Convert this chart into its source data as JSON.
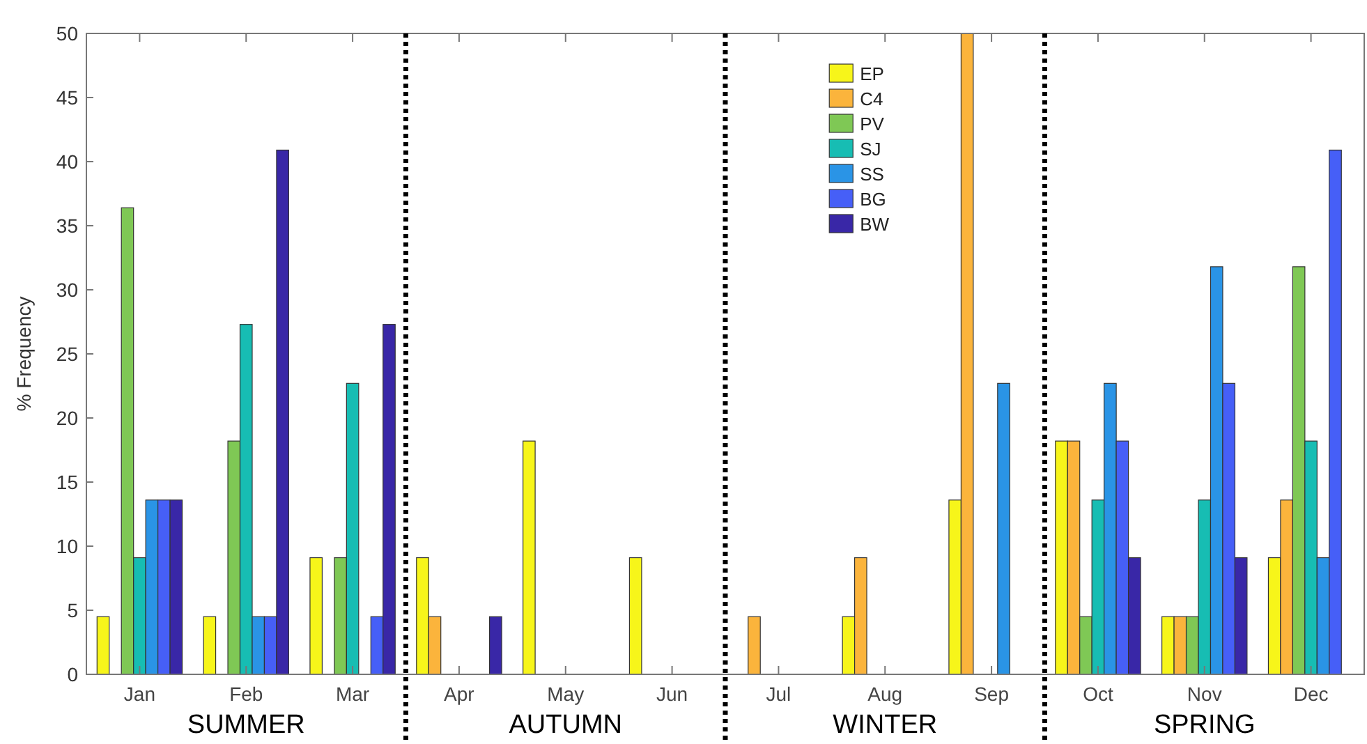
{
  "chart_data": {
    "type": "bar",
    "ylabel": "% Frequency",
    "categories": [
      "Jan",
      "Feb",
      "Mar",
      "Apr",
      "May",
      "Jun",
      "Jul",
      "Aug",
      "Sep",
      "Oct",
      "Nov",
      "Dec"
    ],
    "ylim": [
      0,
      50
    ],
    "yticks": [
      0,
      5,
      10,
      15,
      20,
      25,
      30,
      35,
      40,
      45,
      50
    ],
    "series": [
      {
        "name": "EP",
        "color": "#f7f51a",
        "values": [
          4.5,
          4.5,
          9.1,
          9.1,
          18.2,
          9.1,
          0,
          4.5,
          13.6,
          18.2,
          4.5,
          9.1
        ]
      },
      {
        "name": "C4",
        "color": "#fbb43c",
        "values": [
          0,
          0,
          0,
          4.5,
          0,
          0,
          4.5,
          9.1,
          50,
          18.2,
          4.5,
          13.6
        ]
      },
      {
        "name": "PV",
        "color": "#7fc855",
        "values": [
          36.4,
          18.2,
          9.1,
          0,
          0,
          0,
          0,
          0,
          0,
          4.5,
          4.5,
          31.8
        ]
      },
      {
        "name": "SJ",
        "color": "#17bdb3",
        "values": [
          9.1,
          27.3,
          22.7,
          0,
          0,
          0,
          0,
          0,
          0,
          13.6,
          13.6,
          18.2
        ]
      },
      {
        "name": "SS",
        "color": "#2a94e6",
        "values": [
          13.6,
          4.5,
          0,
          0,
          0,
          0,
          0,
          0,
          22.7,
          22.7,
          31.8,
          9.1
        ]
      },
      {
        "name": "BG",
        "color": "#465ff7",
        "values": [
          13.6,
          4.5,
          4.5,
          0,
          0,
          0,
          0,
          0,
          0,
          18.2,
          22.7,
          40.9
        ]
      },
      {
        "name": "BW",
        "color": "#3927a7",
        "values": [
          13.6,
          40.9,
          27.3,
          4.5,
          0,
          0,
          0,
          0,
          0,
          9.1,
          9.1,
          0
        ]
      }
    ],
    "annotations": [
      "SUMMER",
      "AUTUMN",
      "WINTER",
      "SPRING"
    ],
    "legend": "top",
    "grid": false
  }
}
